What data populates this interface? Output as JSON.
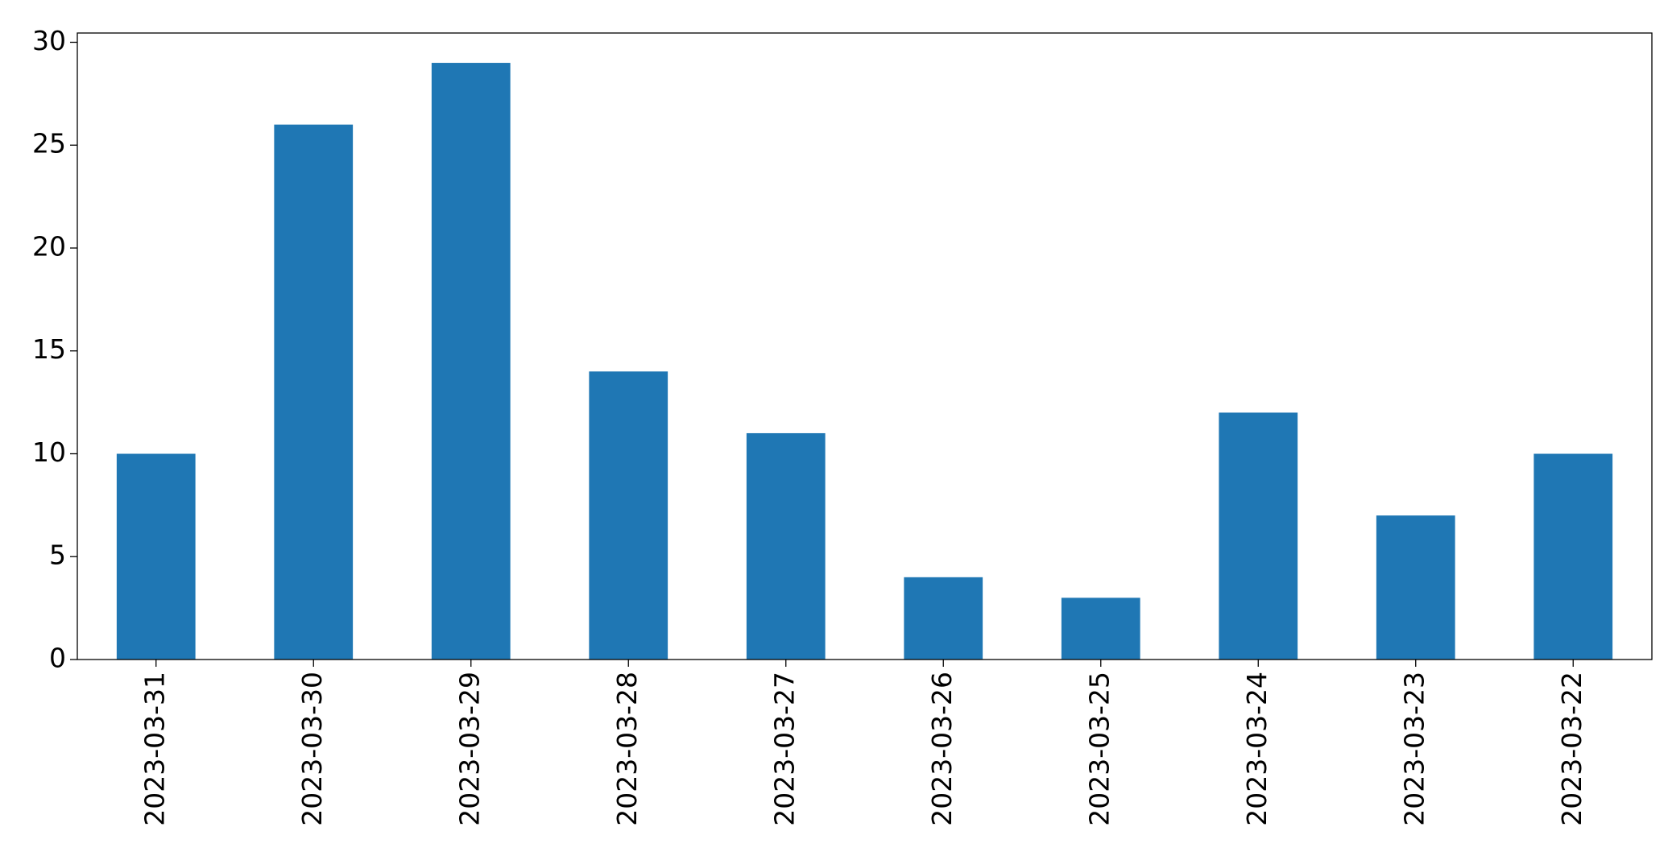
{
  "chart_data": {
    "type": "bar",
    "categories": [
      "2023-03-31",
      "2023-03-30",
      "2023-03-29",
      "2023-03-28",
      "2023-03-27",
      "2023-03-26",
      "2023-03-25",
      "2023-03-24",
      "2023-03-23",
      "2023-03-22"
    ],
    "values": [
      10,
      26,
      29,
      14,
      11,
      4,
      3,
      12,
      7,
      10
    ],
    "color": "#1f77b4",
    "ylim": [
      0,
      30.45
    ],
    "yticks": [
      0,
      5,
      10,
      15,
      20,
      25,
      30
    ],
    "grid": false
  }
}
